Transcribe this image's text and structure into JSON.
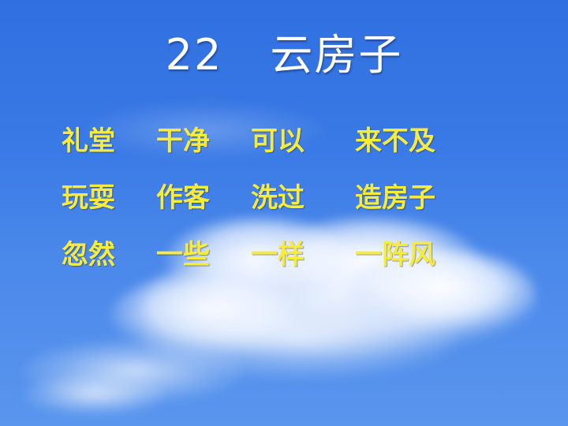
{
  "slide": {
    "title_number": "22",
    "title_text": "云房子",
    "rows": [
      [
        "礼堂",
        "干净",
        "可以",
        "来不及"
      ],
      [
        "玩耍",
        "作客",
        "洗过",
        "造房子"
      ],
      [
        "忽然",
        "一些",
        "一样",
        "一阵风"
      ]
    ]
  },
  "colors": {
    "sky_top": "#2f6fe0",
    "sky_bottom": "#5a96ee",
    "title": "#ffffff",
    "words": "#f7ec3a"
  }
}
